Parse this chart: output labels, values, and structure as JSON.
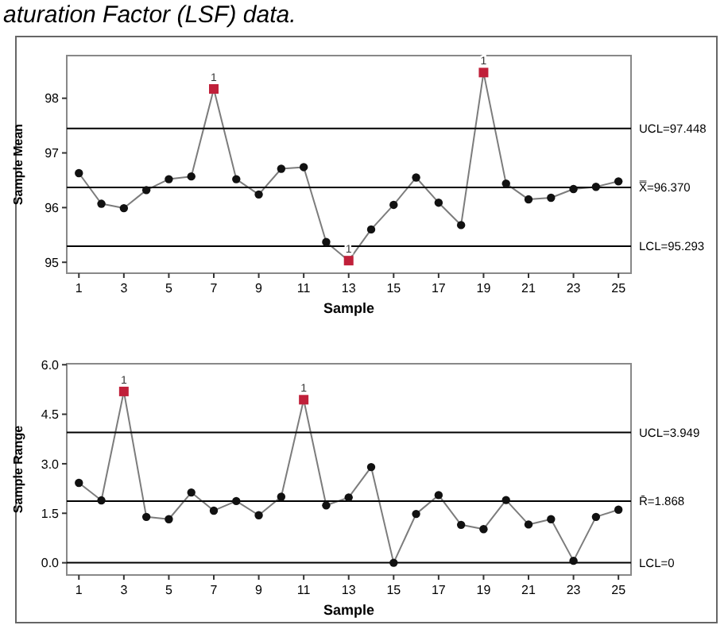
{
  "chart_data": [
    {
      "type": "line",
      "ylabel": "Sample Mean",
      "xlabel": "Sample",
      "x": [
        1,
        2,
        3,
        4,
        5,
        6,
        7,
        8,
        9,
        10,
        11,
        12,
        13,
        14,
        15,
        16,
        17,
        18,
        19,
        20,
        21,
        22,
        23,
        24,
        25
      ],
      "xlim": [
        0.46,
        25.56
      ],
      "xticks": [
        1,
        3,
        5,
        7,
        9,
        11,
        13,
        15,
        17,
        19,
        21,
        23,
        25
      ],
      "ylim": [
        94.8,
        98.78
      ],
      "yticks": [
        95,
        96,
        97,
        98
      ],
      "grid": false,
      "marker": "circle",
      "line_style": "solid",
      "series": [
        {
          "color": "#111111",
          "values": [
            96.63,
            96.07,
            95.99,
            96.32,
            96.52,
            96.57,
            98.17,
            96.52,
            96.24,
            96.71,
            96.74,
            95.37,
            95.03,
            95.6,
            96.05,
            96.55,
            96.09,
            95.68,
            98.47,
            96.44,
            96.15,
            96.18,
            96.34,
            96.38,
            96.48
          ]
        },
        {
          "type": "scatter",
          "marker": "square",
          "color": "#c0203a",
          "x": [
            7,
            13,
            19
          ],
          "values": [
            98.17,
            95.03,
            98.47
          ]
        }
      ],
      "ref_lines": [
        {
          "axis": "y",
          "value": 97.448,
          "label": "UCL=97.448"
        },
        {
          "axis": "y",
          "value": 96.37,
          "label": "X̿=96.370"
        },
        {
          "axis": "y",
          "value": 95.293,
          "label": "LCL=95.293"
        }
      ],
      "annotations": [
        "aturation Factor (LSF) data.",
        {
          "text": "1",
          "x": 7,
          "y": 98.17
        },
        {
          "text": "1",
          "x": 13,
          "y": 95.03
        },
        {
          "text": "1",
          "x": 19,
          "y": 98.47
        }
      ]
    },
    {
      "type": "line",
      "ylabel": "Sample Range",
      "xlabel": "Sample",
      "x": [
        1,
        2,
        3,
        4,
        5,
        6,
        7,
        8,
        9,
        10,
        11,
        12,
        13,
        14,
        15,
        16,
        17,
        18,
        19,
        20,
        21,
        22,
        23,
        24,
        25
      ],
      "xlim": [
        0.46,
        25.56
      ],
      "xticks": [
        1,
        3,
        5,
        7,
        9,
        11,
        13,
        15,
        17,
        19,
        21,
        23,
        25
      ],
      "ylim": [
        -0.37,
        6.03
      ],
      "yticks": [
        {
          "value": 0,
          "label": "0.0"
        },
        1.5,
        {
          "value": 3,
          "label": "3.0"
        },
        4.5,
        {
          "value": 6,
          "label": "6.0"
        }
      ],
      "grid": false,
      "marker": "circle",
      "line_style": "solid",
      "series": [
        {
          "color": "#111111",
          "values": [
            2.42,
            1.89,
            5.19,
            1.39,
            1.32,
            2.13,
            1.58,
            1.87,
            1.44,
            2.0,
            4.94,
            1.74,
            1.98,
            2.9,
            0,
            1.48,
            2.05,
            1.15,
            1.02,
            1.9,
            1.16,
            1.32,
            0.06,
            1.39,
            1.61
          ]
        },
        {
          "type": "scatter",
          "marker": "square",
          "color": "#c0203a",
          "x": [
            3,
            11
          ],
          "values": [
            5.19,
            4.94
          ]
        }
      ],
      "ref_lines": [
        {
          "axis": "y",
          "value": 3.949,
          "label": "UCL=3.949"
        },
        {
          "axis": "y",
          "value": 1.868,
          "label": "R̄=1.868"
        },
        {
          "axis": "y",
          "value": 0,
          "label": "LCL=0"
        }
      ],
      "annotations": [
        {
          "text": "1",
          "x": 3,
          "y": 5.19
        },
        {
          "text": "1",
          "x": 11,
          "y": 4.94
        }
      ]
    }
  ]
}
